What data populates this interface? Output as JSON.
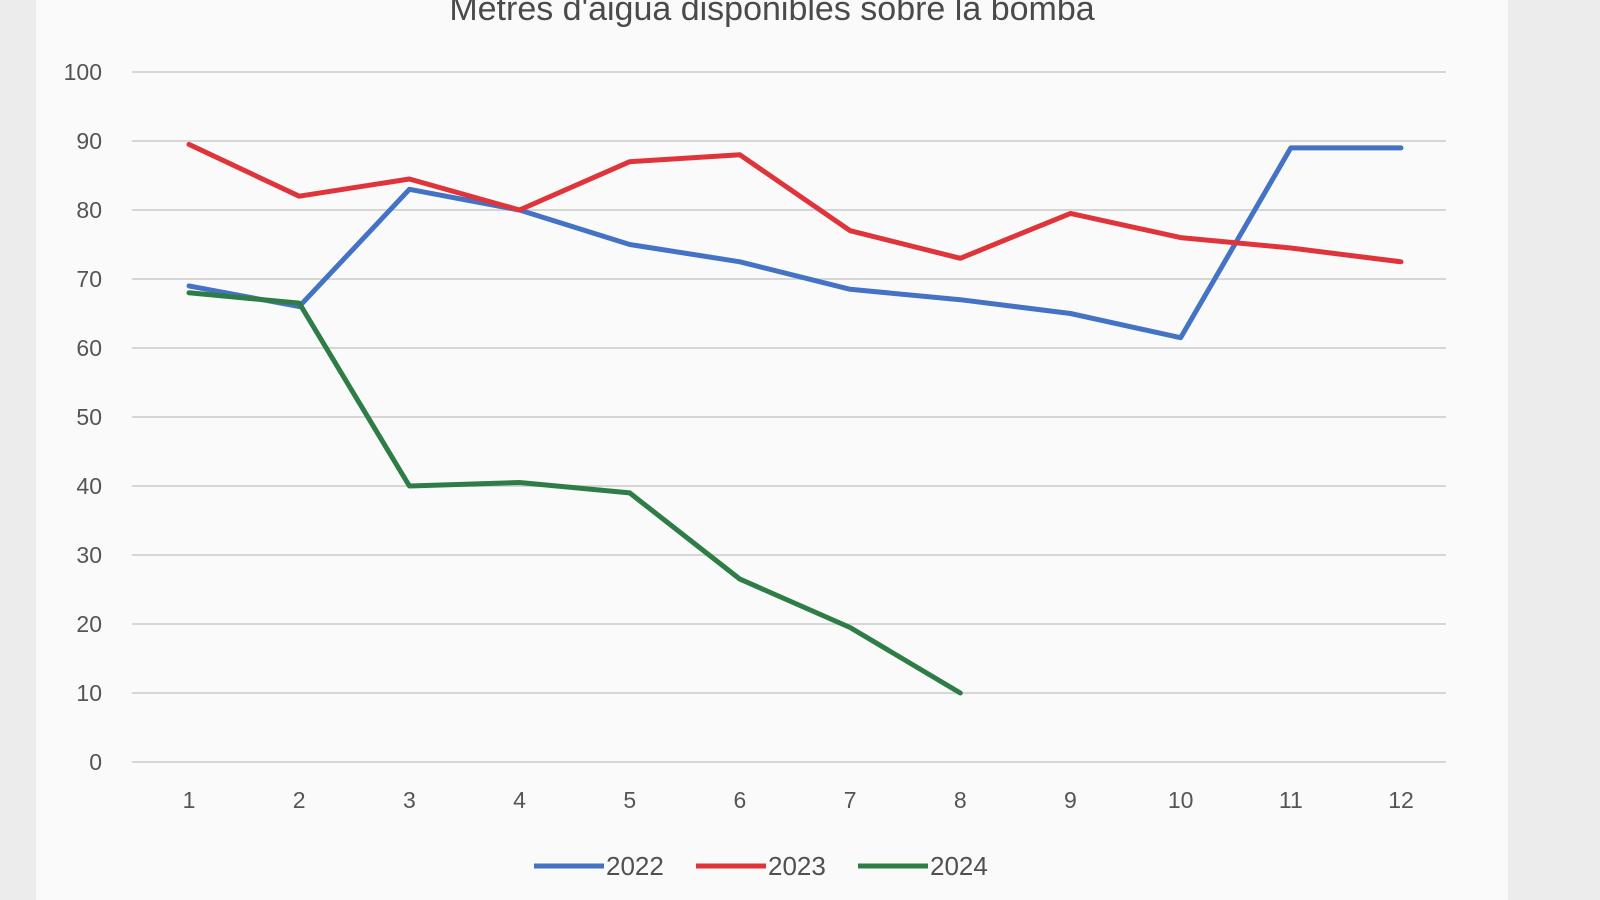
{
  "chart_data": {
    "type": "line",
    "title": "Metres d'aigua disponibles sobre la bomba",
    "xlabel": "",
    "ylabel": "",
    "categories": [
      "1",
      "2",
      "3",
      "4",
      "5",
      "6",
      "7",
      "8",
      "9",
      "10",
      "11",
      "12"
    ],
    "ylim": [
      0,
      100
    ],
    "yticks": [
      0,
      10,
      20,
      30,
      40,
      50,
      60,
      70,
      80,
      90,
      100
    ],
    "grid": true,
    "legend_position": "bottom",
    "series": [
      {
        "name": "2022",
        "color": "#4472c4",
        "values": [
          69,
          66,
          83,
          80,
          75,
          72.5,
          68.5,
          67,
          65,
          61.5,
          89,
          89
        ]
      },
      {
        "name": "2023",
        "color": "#e0343b",
        "values": [
          89.5,
          82,
          84.5,
          80,
          87,
          88,
          77,
          73,
          79.5,
          76,
          74.5,
          72.5
        ]
      },
      {
        "name": "2024",
        "color": "#2e7d46",
        "values": [
          68,
          66.5,
          40,
          40.5,
          39,
          26.5,
          19.5,
          10,
          null,
          null,
          null,
          null
        ]
      }
    ]
  }
}
